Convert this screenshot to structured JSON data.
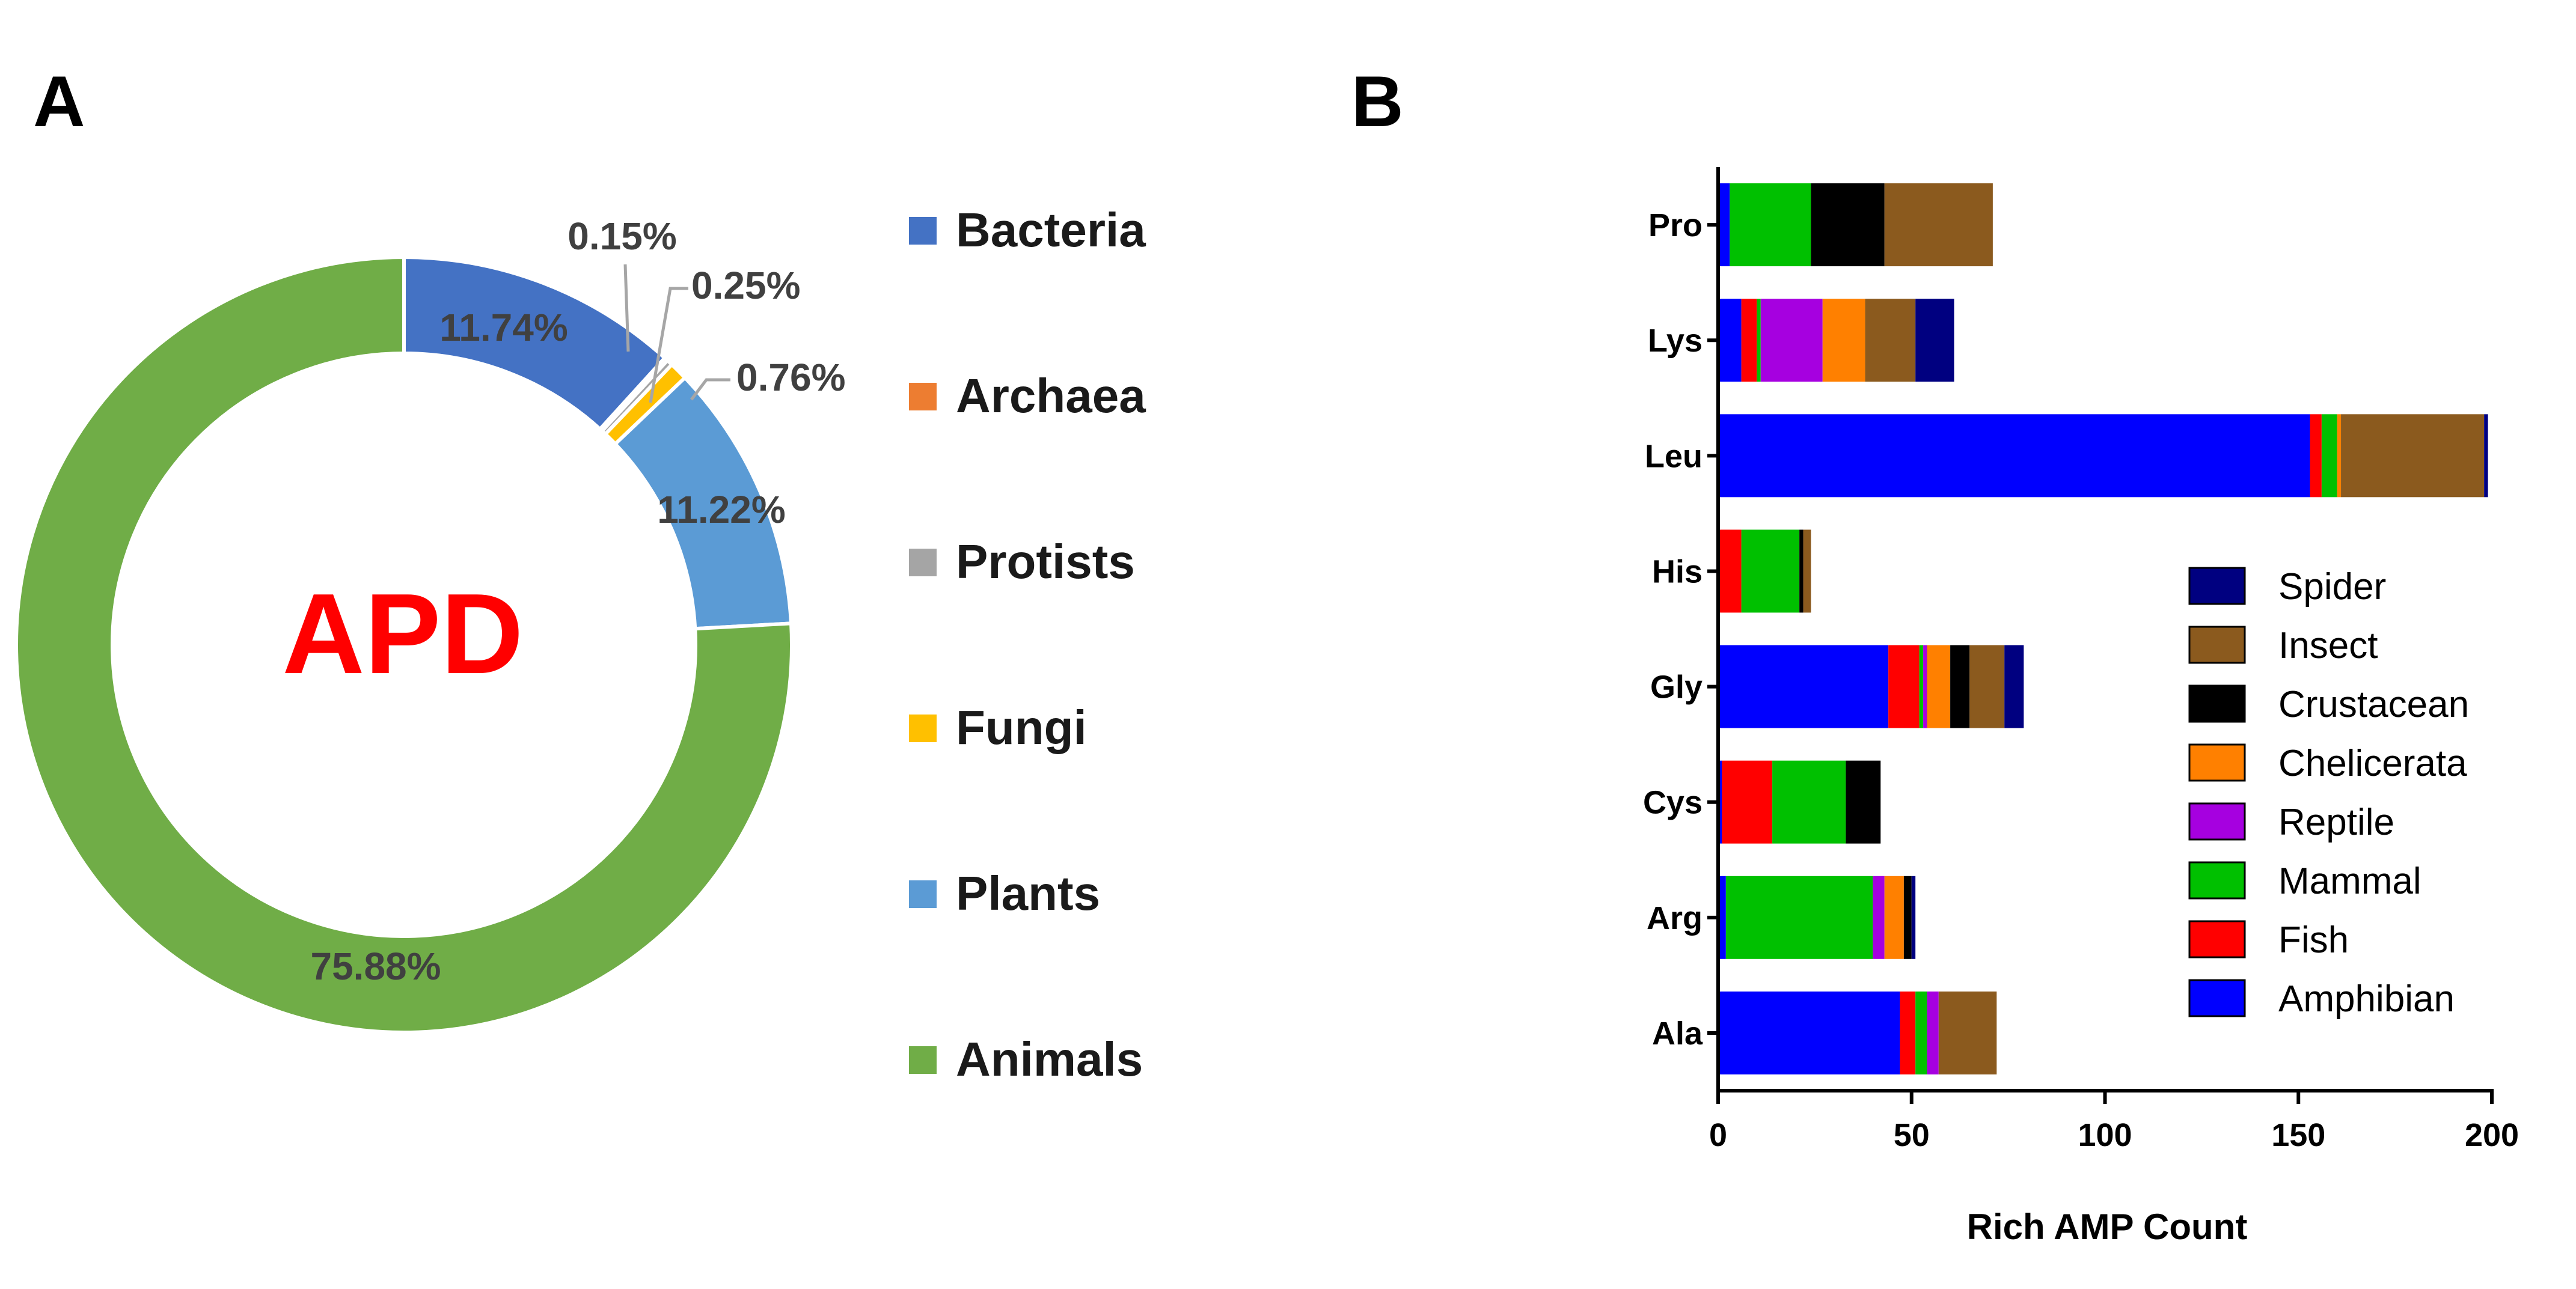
{
  "chart_data": [
    {
      "panel": "A",
      "type": "pie",
      "center_label": "APD",
      "slices": [
        {
          "label": "Bacteria",
          "value": 11.74,
          "text": "11.74%",
          "color": "#4472c4"
        },
        {
          "label": "Archaea",
          "value": 0.15,
          "text": "0.15%",
          "color": "#ed7d31"
        },
        {
          "label": "Protists",
          "value": 0.25,
          "text": "0.25%",
          "color": "#a5a5a5"
        },
        {
          "label": "Fungi",
          "value": 0.76,
          "text": "0.76%",
          "color": "#ffc000"
        },
        {
          "label": "Plants",
          "value": 11.22,
          "text": "11.22%",
          "color": "#5b9bd5"
        },
        {
          "label": "Animals",
          "value": 75.88,
          "text": "75.88%",
          "color": "#70ad47"
        }
      ],
      "legend": [
        "Bacteria",
        "Archaea",
        "Protists",
        "Fungi",
        "Plants",
        "Animals"
      ]
    },
    {
      "panel": "B",
      "type": "bar",
      "orientation": "horizontal",
      "stacked": true,
      "xlabel": "Rich AMP Count",
      "xlim": [
        0,
        200
      ],
      "xticks": [
        0,
        50,
        100,
        150,
        200
      ],
      "categories": [
        "Pro",
        "Lys",
        "Leu",
        "His",
        "Gly",
        "Cys",
        "Arg",
        "Ala"
      ],
      "series": [
        {
          "name": "Amphibian",
          "color": "#0000ff",
          "values": [
            3,
            6,
            153,
            0,
            44,
            1,
            2,
            47
          ]
        },
        {
          "name": "Fish",
          "color": "#ff0000",
          "values": [
            0,
            4,
            3,
            6,
            8,
            13,
            0,
            4
          ]
        },
        {
          "name": "Mammal",
          "color": "#00c000",
          "values": [
            21,
            1,
            4,
            15,
            1,
            19,
            38,
            3
          ]
        },
        {
          "name": "Reptile",
          "color": "#a600e0",
          "values": [
            0,
            16,
            0,
            0,
            1,
            0,
            3,
            3
          ]
        },
        {
          "name": "Chelicerata",
          "color": "#ff8000",
          "values": [
            0,
            11,
            1,
            0,
            6,
            0,
            5,
            0
          ]
        },
        {
          "name": "Crustacean",
          "color": "#000000",
          "values": [
            19,
            0,
            0,
            1,
            5,
            9,
            2,
            0
          ]
        },
        {
          "name": "Insect",
          "color": "#8b5a1e",
          "values": [
            28,
            13,
            37,
            2,
            9,
            0,
            0,
            15
          ]
        },
        {
          "name": "Spider",
          "color": "#000080",
          "values": [
            0,
            10,
            1,
            0,
            5,
            0,
            1,
            0
          ]
        }
      ],
      "legend_order": [
        "Spider",
        "Insect",
        "Crustacean",
        "Chelicerata",
        "Reptile",
        "Mammal",
        "Fish",
        "Amphibian"
      ],
      "legend_position": "right"
    }
  ],
  "panels": {
    "a_label": "A",
    "b_label": "B"
  }
}
